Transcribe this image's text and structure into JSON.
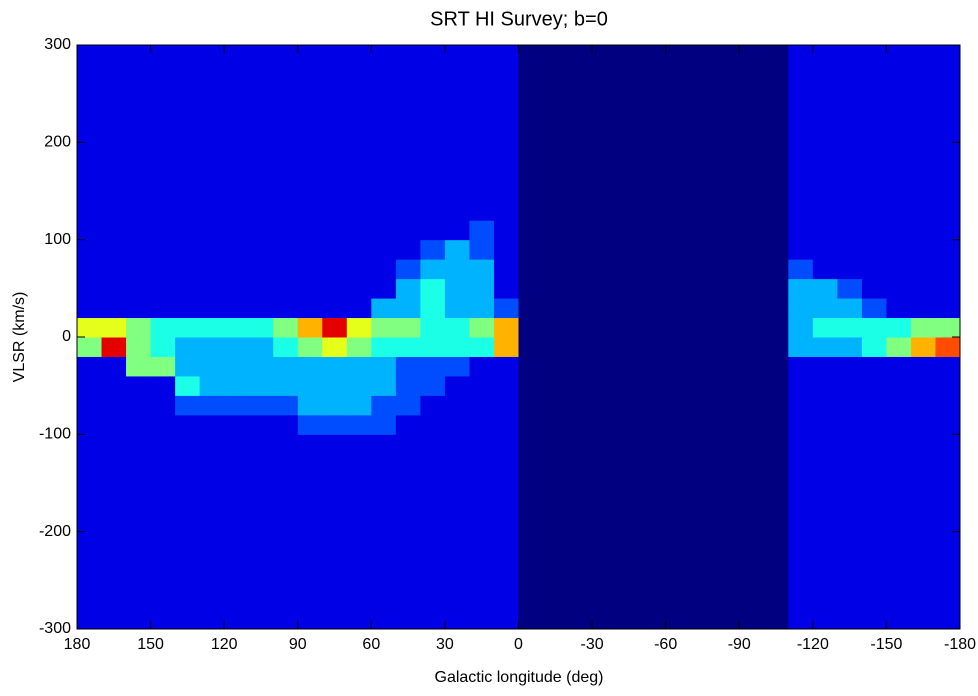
{
  "chart_data": {
    "type": "heatmap",
    "title": "SRT HI Survey; b=0",
    "xlabel": "Galactic longitude (deg)",
    "ylabel": "VLSR (km/s)",
    "xlim": [
      180,
      -180
    ],
    "ylim": [
      -300,
      300
    ],
    "xticks": [
      180,
      150,
      120,
      90,
      60,
      30,
      0,
      -30,
      -60,
      -90,
      -120,
      -150,
      -180
    ],
    "yticks": [
      -300,
      -200,
      -100,
      0,
      100,
      200,
      300
    ],
    "colormap": "jet",
    "clim": [
      0,
      10
    ],
    "z": [
      [
        1,
        1,
        1,
        1,
        1,
        1,
        1,
        1,
        1,
        1,
        1,
        1,
        1,
        1,
        1,
        1,
        1,
        1,
        0,
        0,
        0,
        0,
        0,
        0,
        0,
        0,
        0,
        0,
        0,
        1,
        1,
        1,
        1,
        1,
        1,
        1
      ],
      [
        1,
        1,
        1,
        1,
        1,
        1,
        1,
        1,
        1,
        1,
        1,
        1,
        1,
        1,
        1,
        1,
        1,
        1,
        0,
        0,
        0,
        0,
        0,
        0,
        0,
        0,
        0,
        0,
        0,
        1,
        1,
        1,
        1,
        1,
        1,
        1
      ],
      [
        1,
        1,
        1,
        1,
        1,
        1,
        1,
        1,
        1,
        1,
        1,
        1,
        1,
        1,
        1,
        1,
        1,
        1,
        0,
        0,
        0,
        0,
        0,
        0,
        0,
        0,
        0,
        0,
        0,
        1,
        1,
        1,
        1,
        1,
        1,
        1
      ],
      [
        1,
        1,
        1,
        1,
        1,
        1,
        1,
        1,
        1,
        1,
        1,
        1,
        1,
        1,
        1,
        1,
        1,
        1,
        0,
        0,
        0,
        0,
        0,
        0,
        0,
        0,
        0,
        0,
        0,
        1,
        1,
        1,
        1,
        1,
        1,
        1
      ],
      [
        1,
        1,
        1,
        1,
        1,
        1,
        1,
        1,
        1,
        1,
        1,
        1,
        1,
        1,
        1,
        1,
        1,
        1,
        0,
        0,
        0,
        0,
        0,
        0,
        0,
        0,
        0,
        0,
        0,
        1,
        1,
        1,
        1,
        1,
        1,
        1
      ],
      [
        1,
        1,
        1,
        1,
        1,
        1,
        1,
        1,
        1,
        1,
        1,
        1,
        1,
        1,
        1,
        1,
        1,
        1,
        0,
        0,
        0,
        0,
        0,
        0,
        0,
        0,
        0,
        0,
        0,
        1,
        1,
        1,
        1,
        1,
        1,
        1
      ],
      [
        1,
        1,
        1,
        1,
        1,
        1,
        1,
        1,
        1,
        1,
        1,
        1,
        1,
        1,
        1,
        1,
        1,
        1,
        0,
        0,
        0,
        0,
        0,
        0,
        0,
        0,
        0,
        0,
        0,
        1,
        1,
        1,
        1,
        1,
        1,
        1
      ],
      [
        1,
        1,
        1,
        1,
        1,
        1,
        1,
        1,
        1,
        1,
        1,
        1,
        1,
        1,
        1,
        1,
        1,
        1,
        0,
        0,
        0,
        0,
        0,
        0,
        0,
        0,
        0,
        0,
        0,
        1,
        1,
        1,
        1,
        1,
        1,
        1
      ],
      [
        1,
        1,
        1,
        1,
        1,
        1,
        1,
        1,
        1,
        1,
        1,
        1,
        1,
        1,
        1,
        1,
        1,
        1,
        0,
        0,
        0,
        0,
        0,
        0,
        0,
        0,
        0,
        0,
        0,
        1,
        1,
        1,
        1,
        1,
        1,
        1
      ],
      [
        1,
        1,
        1,
        1,
        1,
        1,
        1,
        1,
        1,
        1,
        1,
        1,
        1,
        1,
        1,
        1,
        1,
        1,
        0,
        0,
        0,
        0,
        0,
        0,
        0,
        0,
        0,
        0,
        0,
        1,
        1,
        1,
        1,
        1,
        1,
        1
      ],
      [
        1,
        1,
        1,
        1,
        1,
        1,
        1,
        1,
        1,
        2,
        2,
        2,
        2,
        1,
        1,
        1,
        1,
        1,
        0,
        0,
        0,
        0,
        0,
        0,
        0,
        0,
        0,
        0,
        0,
        1,
        1,
        1,
        1,
        1,
        1,
        1
      ],
      [
        1,
        1,
        1,
        1,
        2,
        2,
        2,
        2,
        2,
        3,
        3,
        3,
        2,
        2,
        1,
        1,
        1,
        1,
        0,
        0,
        0,
        0,
        0,
        0,
        0,
        0,
        0,
        0,
        0,
        1,
        1,
        1,
        1,
        1,
        1,
        1
      ],
      [
        1,
        1,
        1,
        1,
        4,
        3,
        3,
        3,
        3,
        3,
        3,
        3,
        3,
        2,
        2,
        1,
        1,
        1,
        0,
        0,
        0,
        0,
        0,
        0,
        0,
        0,
        0,
        0,
        0,
        1,
        1,
        1,
        1,
        1,
        1,
        1
      ],
      [
        1,
        1,
        5,
        5,
        3,
        3,
        3,
        3,
        3,
        3,
        3,
        3,
        3,
        2,
        2,
        2,
        1,
        1,
        0,
        0,
        0,
        0,
        0,
        0,
        0,
        0,
        0,
        0,
        0,
        1,
        1,
        1,
        1,
        1,
        1,
        1
      ],
      [
        5,
        9,
        5,
        4,
        3,
        3,
        3,
        3,
        4,
        5,
        6,
        5,
        4,
        4,
        4,
        4,
        4,
        7,
        0,
        0,
        0,
        0,
        0,
        0,
        0,
        0,
        0,
        0,
        0,
        3,
        3,
        3,
        4,
        5,
        7,
        8
      ],
      [
        6,
        6,
        5,
        4,
        4,
        4,
        4,
        4,
        5,
        7,
        9,
        6,
        5,
        5,
        4,
        4,
        5,
        7,
        0,
        0,
        0,
        0,
        0,
        0,
        0,
        0,
        0,
        0,
        0,
        3,
        4,
        4,
        4,
        4,
        5,
        5
      ],
      [
        1,
        1,
        1,
        1,
        1,
        1,
        1,
        1,
        1,
        1,
        1,
        1,
        3,
        3,
        4,
        3,
        3,
        2,
        0,
        0,
        0,
        0,
        0,
        0,
        0,
        0,
        0,
        0,
        0,
        3,
        3,
        3,
        2,
        1,
        1,
        1
      ],
      [
        1,
        1,
        1,
        1,
        1,
        1,
        1,
        1,
        1,
        1,
        1,
        1,
        1,
        3,
        4,
        3,
        3,
        1,
        0,
        0,
        0,
        0,
        0,
        0,
        0,
        0,
        0,
        0,
        0,
        3,
        3,
        2,
        1,
        1,
        1,
        1
      ],
      [
        1,
        1,
        1,
        1,
        1,
        1,
        1,
        1,
        1,
        1,
        1,
        1,
        1,
        2,
        3,
        3,
        3,
        1,
        0,
        0,
        0,
        0,
        0,
        0,
        0,
        0,
        0,
        0,
        0,
        2,
        1,
        1,
        1,
        1,
        1,
        1
      ],
      [
        1,
        1,
        1,
        1,
        1,
        1,
        1,
        1,
        1,
        1,
        1,
        1,
        1,
        1,
        2,
        3,
        2,
        1,
        0,
        0,
        0,
        0,
        0,
        0,
        0,
        0,
        0,
        0,
        0,
        1,
        1,
        1,
        1,
        1,
        1,
        1
      ],
      [
        1,
        1,
        1,
        1,
        1,
        1,
        1,
        1,
        1,
        1,
        1,
        1,
        1,
        1,
        1,
        1,
        2,
        1,
        0,
        0,
        0,
        0,
        0,
        0,
        0,
        0,
        0,
        0,
        0,
        1,
        1,
        1,
        1,
        1,
        1,
        1
      ],
      [
        1,
        1,
        1,
        1,
        1,
        1,
        1,
        1,
        1,
        1,
        1,
        1,
        1,
        1,
        1,
        1,
        1,
        1,
        0,
        0,
        0,
        0,
        0,
        0,
        0,
        0,
        0,
        0,
        0,
        1,
        1,
        1,
        1,
        1,
        1,
        1
      ],
      [
        1,
        1,
        1,
        1,
        1,
        1,
        1,
        1,
        1,
        1,
        1,
        1,
        1,
        1,
        1,
        1,
        1,
        1,
        0,
        0,
        0,
        0,
        0,
        0,
        0,
        0,
        0,
        0,
        0,
        1,
        1,
        1,
        1,
        1,
        1,
        1
      ],
      [
        1,
        1,
        1,
        1,
        1,
        1,
        1,
        1,
        1,
        1,
        1,
        1,
        1,
        1,
        1,
        1,
        1,
        1,
        0,
        0,
        0,
        0,
        0,
        0,
        0,
        0,
        0,
        0,
        0,
        1,
        1,
        1,
        1,
        1,
        1,
        1
      ],
      [
        1,
        1,
        1,
        1,
        1,
        1,
        1,
        1,
        1,
        1,
        1,
        1,
        1,
        1,
        1,
        1,
        1,
        1,
        0,
        0,
        0,
        0,
        0,
        0,
        0,
        0,
        0,
        0,
        0,
        1,
        1,
        1,
        1,
        1,
        1,
        1
      ],
      [
        1,
        1,
        1,
        1,
        1,
        1,
        1,
        1,
        1,
        1,
        1,
        1,
        1,
        1,
        1,
        1,
        1,
        1,
        0,
        0,
        0,
        0,
        0,
        0,
        0,
        0,
        0,
        0,
        0,
        1,
        1,
        1,
        1,
        1,
        1,
        1
      ],
      [
        1,
        1,
        1,
        1,
        1,
        1,
        1,
        1,
        1,
        1,
        1,
        1,
        1,
        1,
        1,
        1,
        1,
        1,
        0,
        0,
        0,
        0,
        0,
        0,
        0,
        0,
        0,
        0,
        0,
        1,
        1,
        1,
        1,
        1,
        1,
        1
      ],
      [
        1,
        1,
        1,
        1,
        1,
        1,
        1,
        1,
        1,
        1,
        1,
        1,
        1,
        1,
        1,
        1,
        1,
        1,
        0,
        0,
        0,
        0,
        0,
        0,
        0,
        0,
        0,
        0,
        0,
        1,
        1,
        1,
        1,
        1,
        1,
        1
      ],
      [
        1,
        1,
        1,
        1,
        1,
        1,
        1,
        1,
        1,
        1,
        1,
        1,
        1,
        1,
        1,
        1,
        1,
        1,
        0,
        0,
        0,
        0,
        0,
        0,
        0,
        0,
        0,
        0,
        0,
        1,
        1,
        1,
        1,
        1,
        1,
        1
      ],
      [
        1,
        1,
        1,
        1,
        1,
        1,
        1,
        1,
        1,
        1,
        1,
        1,
        1,
        1,
        1,
        1,
        1,
        1,
        0,
        0,
        0,
        0,
        0,
        0,
        0,
        0,
        0,
        0,
        0,
        1,
        1,
        1,
        1,
        1,
        1,
        1
      ]
    ]
  }
}
